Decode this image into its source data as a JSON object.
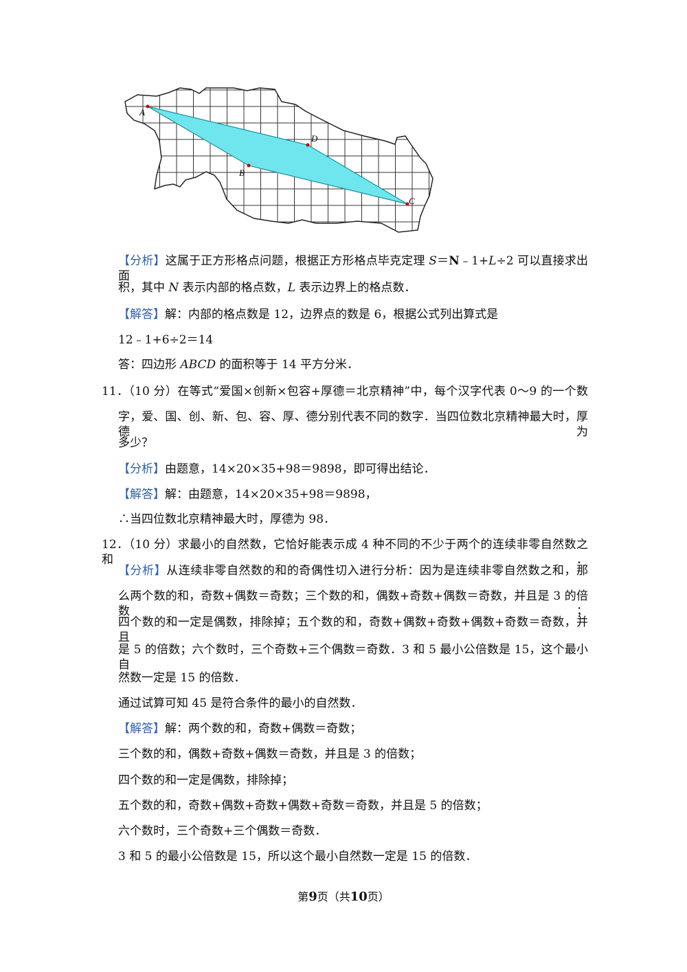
{
  "figure": {
    "labels": [
      "A",
      "B",
      "C",
      "D"
    ]
  },
  "lines": [
    [
      "【分析】",
      "这属于正方形格点问题，根据正方形格点毕克定理 ",
      "S",
      "＝",
      "N",
      "﹣1+",
      "L",
      "÷2 可以直接求出面"
    ],
    [
      "积，其中 ",
      "N",
      " 表示内部的格点数，",
      "L",
      " 表示边界上的格点数．"
    ],
    [
      "【解答】",
      "解：内部的格点数是 12，边界点的数是 6，根据公式列出算式是"
    ],
    [
      "12﹣1+6÷2＝14"
    ],
    [
      "答：四边形 ",
      "ABCD",
      " 的面积等于 14 平方分米．"
    ],
    [
      "11．（10 分）在等式“爱国×创新×包容+厚德＝北京精神”中，每个汉字代表 0～9 的一个数"
    ],
    [
      "字，爱、国、创、新、包、容、厚、德分别代表不同的数字．当四位数北京精神最大时，厚德为"
    ],
    [
      "多少？"
    ],
    [
      "【分析】",
      "由题意，14×20×35+98＝9898，即可得出结论．"
    ],
    [
      "【解答】",
      "解：由题意，14×20×35+98＝9898，"
    ],
    [
      "∴当四位数北京精神最大时，厚德为 98．"
    ],
    [
      "12．（10 分）求最小的自然数，它恰好能表示成 4 种不同的不少于两个的连续非零自然数之和．"
    ],
    [
      "【分析】",
      "从连续非零自然数的和的奇偶性切入进行分析：因为是连续非零自然数之和，那"
    ],
    [
      "么两个数的和，奇数+偶数＝奇数；三个数的和，偶数+奇数+偶数＝奇数，并且是 3 的倍数；"
    ],
    [
      "四个数的和一定是偶数，排除掉；五个数的和，奇数+偶数+奇数+偶数+奇数＝奇数，并且"
    ],
    [
      "是 5 的倍数；六个数时，三个奇数+三个偶数＝奇数．3 和 5 最小公倍数是 15，这个最小自"
    ],
    [
      "然数一定是 15 的倍数．"
    ],
    [
      "通过试算可知 45 是符合条件的最小的自然数．"
    ],
    [
      "【解答】",
      "解：两个数的和，奇数+偶数＝奇数；"
    ],
    [
      "三个数的和，偶数+奇数+偶数＝奇数，并且是 3 的倍数；"
    ],
    [
      "四个数的和一定是偶数，排除掉；"
    ],
    [
      "五个数的和，奇数+偶数+奇数+偶数+奇数＝奇数，并且是 5 的倍数；"
    ],
    [
      "六个数时，三个奇数+三个偶数＝奇数．"
    ],
    [
      "3 和 5 的最小公倍数是 15，所以这个最小自然数一定是 15 的倍数．"
    ]
  ],
  "footer": [
    "第",
    "9",
    "页（共",
    "10",
    "页）"
  ]
}
